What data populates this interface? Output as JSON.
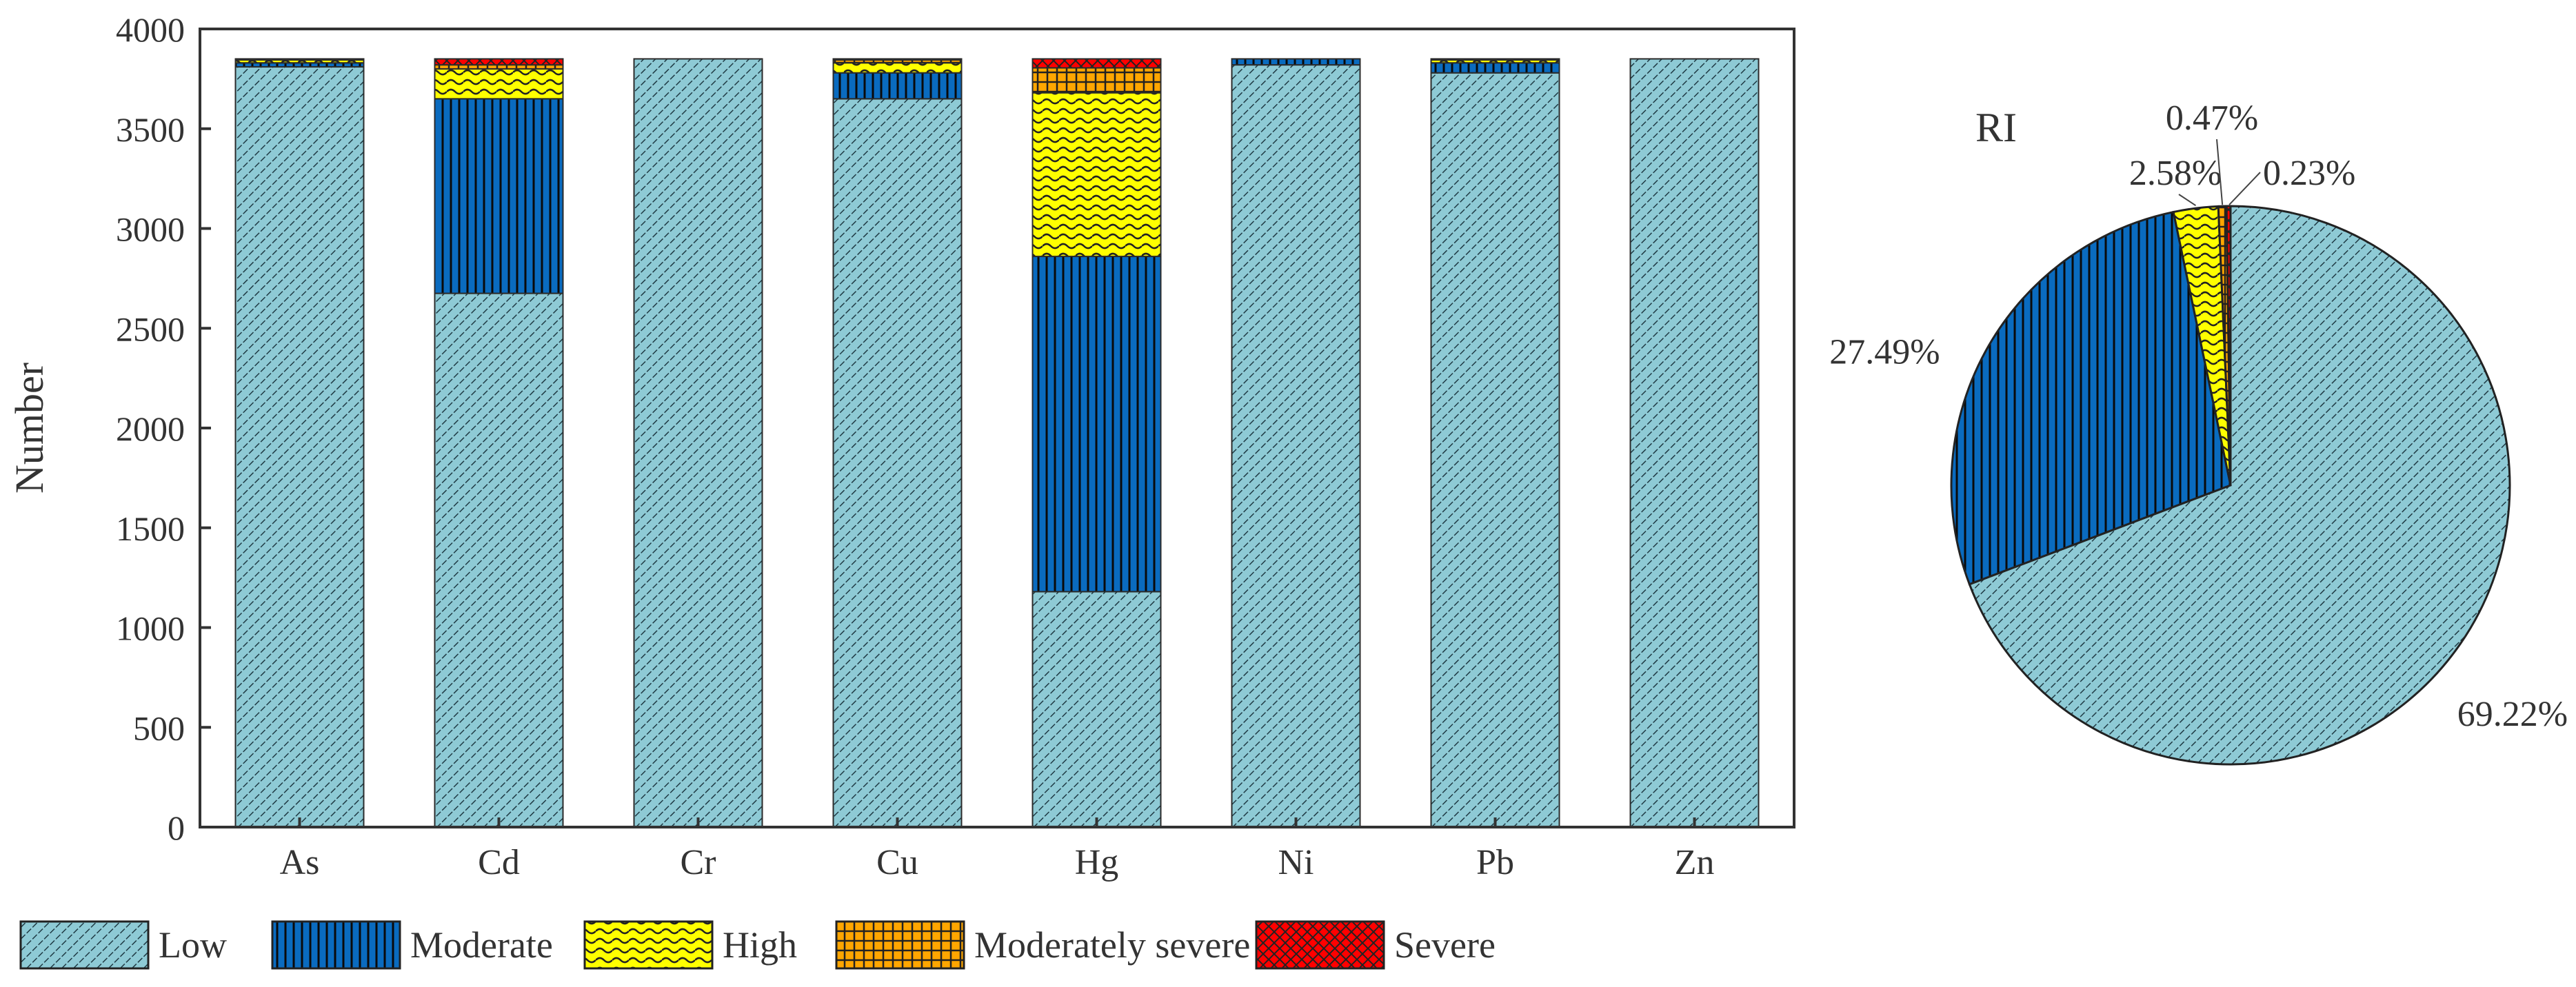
{
  "chart_data": [
    {
      "type": "bar",
      "stacked": true,
      "title": "",
      "xlabel": "",
      "ylabel": "Number",
      "ylim": [
        0,
        4000
      ],
      "yticks": [
        0,
        500,
        1000,
        1500,
        2000,
        2500,
        3000,
        3500,
        4000
      ],
      "categories": [
        "As",
        "Cd",
        "Cr",
        "Cu",
        "Hg",
        "Ni",
        "Pb",
        "Zn"
      ],
      "series": [
        {
          "name": "Low",
          "values": [
            3810,
            2675,
            3850,
            3650,
            1180,
            3820,
            3780,
            3850
          ]
        },
        {
          "name": "Moderate",
          "values": [
            20,
            975,
            0,
            130,
            1680,
            30,
            50,
            0
          ]
        },
        {
          "name": "High",
          "values": [
            15,
            150,
            0,
            50,
            820,
            0,
            15,
            0
          ]
        },
        {
          "name": "Moderately severe",
          "values": [
            5,
            20,
            0,
            15,
            125,
            0,
            5,
            0
          ]
        },
        {
          "name": "Severe",
          "values": [
            0,
            30,
            0,
            5,
            45,
            0,
            0,
            0
          ]
        }
      ],
      "legend": {
        "position": "bottom",
        "entries": [
          "Low",
          "Moderate",
          "High",
          "Moderately severe",
          "Severe"
        ]
      }
    },
    {
      "type": "pie",
      "title": "RI",
      "slices": [
        {
          "name": "Low",
          "value": 69.22,
          "label": "69.22%"
        },
        {
          "name": "Moderate",
          "value": 27.49,
          "label": "27.49%"
        },
        {
          "name": "High",
          "value": 2.58,
          "label": "2.58%"
        },
        {
          "name": "Moderately severe",
          "value": 0.47,
          "label": "0.47%"
        },
        {
          "name": "Severe",
          "value": 0.23,
          "label": "0.23%"
        }
      ]
    }
  ],
  "style": {
    "colors": {
      "Low": "#8ecad5",
      "Moderate": "#0a6bbf",
      "High": "#ffff00",
      "Moderately severe": "#ffa600",
      "Severe": "#ff0000"
    },
    "stroke": "#222222"
  }
}
